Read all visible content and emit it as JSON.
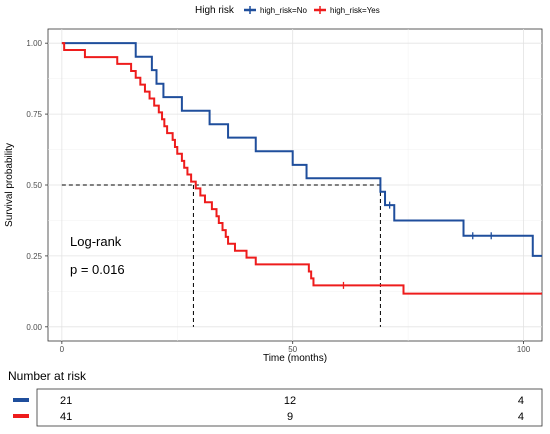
{
  "chart_data": {
    "type": "line",
    "subtype": "kaplan-meier",
    "xlabel": "Time (months)",
    "ylabel": "Survival probability",
    "xlim": [
      -3,
      104
    ],
    "ylim": [
      -0.05,
      1.05
    ],
    "x_ticks": [
      0,
      50,
      100
    ],
    "x_tick_labels": [
      "0",
      "50",
      "100"
    ],
    "y_ticks": [
      0,
      0.25,
      0.5,
      0.75,
      1.0
    ],
    "y_tick_labels": [
      "0.00",
      "0.25",
      "0.50",
      "0.75",
      "1.00"
    ],
    "grid": true,
    "legend": {
      "title": "High risk",
      "placement": "top",
      "entries": [
        "high_risk=No",
        "high_risk=Yes"
      ]
    },
    "series": [
      {
        "name": "high_risk=No",
        "color": "#1f4e9c",
        "steps": [
          [
            0,
            1.0
          ],
          [
            16,
            0.952
          ],
          [
            19.5,
            0.905
          ],
          [
            20.5,
            0.857
          ],
          [
            22,
            0.81
          ],
          [
            26,
            0.762
          ],
          [
            32,
            0.714
          ],
          [
            36,
            0.667
          ],
          [
            42,
            0.619
          ],
          [
            50,
            0.571
          ],
          [
            53,
            0.524
          ],
          [
            69,
            0.476
          ],
          [
            70,
            0.429
          ],
          [
            72,
            0.375
          ],
          [
            87,
            0.321
          ],
          [
            102,
            0.25
          ],
          [
            104,
            0.25
          ]
        ],
        "censored": [
          [
            71,
            0.429
          ],
          [
            89,
            0.321
          ],
          [
            93,
            0.321
          ]
        ]
      },
      {
        "name": "high_risk=Yes",
        "color": "#ee1c1c",
        "steps": [
          [
            0,
            1.0
          ],
          [
            0.5,
            0.976
          ],
          [
            5,
            0.951
          ],
          [
            12,
            0.927
          ],
          [
            15,
            0.902
          ],
          [
            16,
            0.878
          ],
          [
            17,
            0.854
          ],
          [
            18,
            0.829
          ],
          [
            19,
            0.805
          ],
          [
            20,
            0.78
          ],
          [
            21,
            0.756
          ],
          [
            21.7,
            0.732
          ],
          [
            22.2,
            0.707
          ],
          [
            22.8,
            0.683
          ],
          [
            24,
            0.659
          ],
          [
            24.5,
            0.634
          ],
          [
            25,
            0.61
          ],
          [
            26,
            0.585
          ],
          [
            26.5,
            0.561
          ],
          [
            27.2,
            0.537
          ],
          [
            28,
            0.512
          ],
          [
            29,
            0.488
          ],
          [
            30,
            0.463
          ],
          [
            31,
            0.439
          ],
          [
            32.5,
            0.415
          ],
          [
            33.5,
            0.39
          ],
          [
            34,
            0.366
          ],
          [
            34.8,
            0.341
          ],
          [
            35.5,
            0.317
          ],
          [
            36,
            0.293
          ],
          [
            37.5,
            0.268
          ],
          [
            40,
            0.244
          ],
          [
            42,
            0.22
          ],
          [
            53.5,
            0.195
          ],
          [
            54,
            0.171
          ],
          [
            54.5,
            0.146
          ],
          [
            74,
            0.117
          ],
          [
            104,
            0.117
          ]
        ],
        "censored": [
          [
            61,
            0.146
          ]
        ]
      }
    ],
    "median_lines": [
      {
        "x": 28.5,
        "y": 0.5
      },
      {
        "x": 69,
        "y": 0.5
      }
    ],
    "annotations": [
      "Log-rank",
      "p = 0.016"
    ],
    "risk_table": {
      "title": "Number at risk",
      "time_points": [
        0,
        50,
        100
      ],
      "rows": [
        {
          "color": "#1f4e9c",
          "values": [
            "21",
            "12",
            "4"
          ]
        },
        {
          "color": "#ee1c1c",
          "values": [
            "41",
            "9",
            "4"
          ]
        }
      ]
    }
  }
}
